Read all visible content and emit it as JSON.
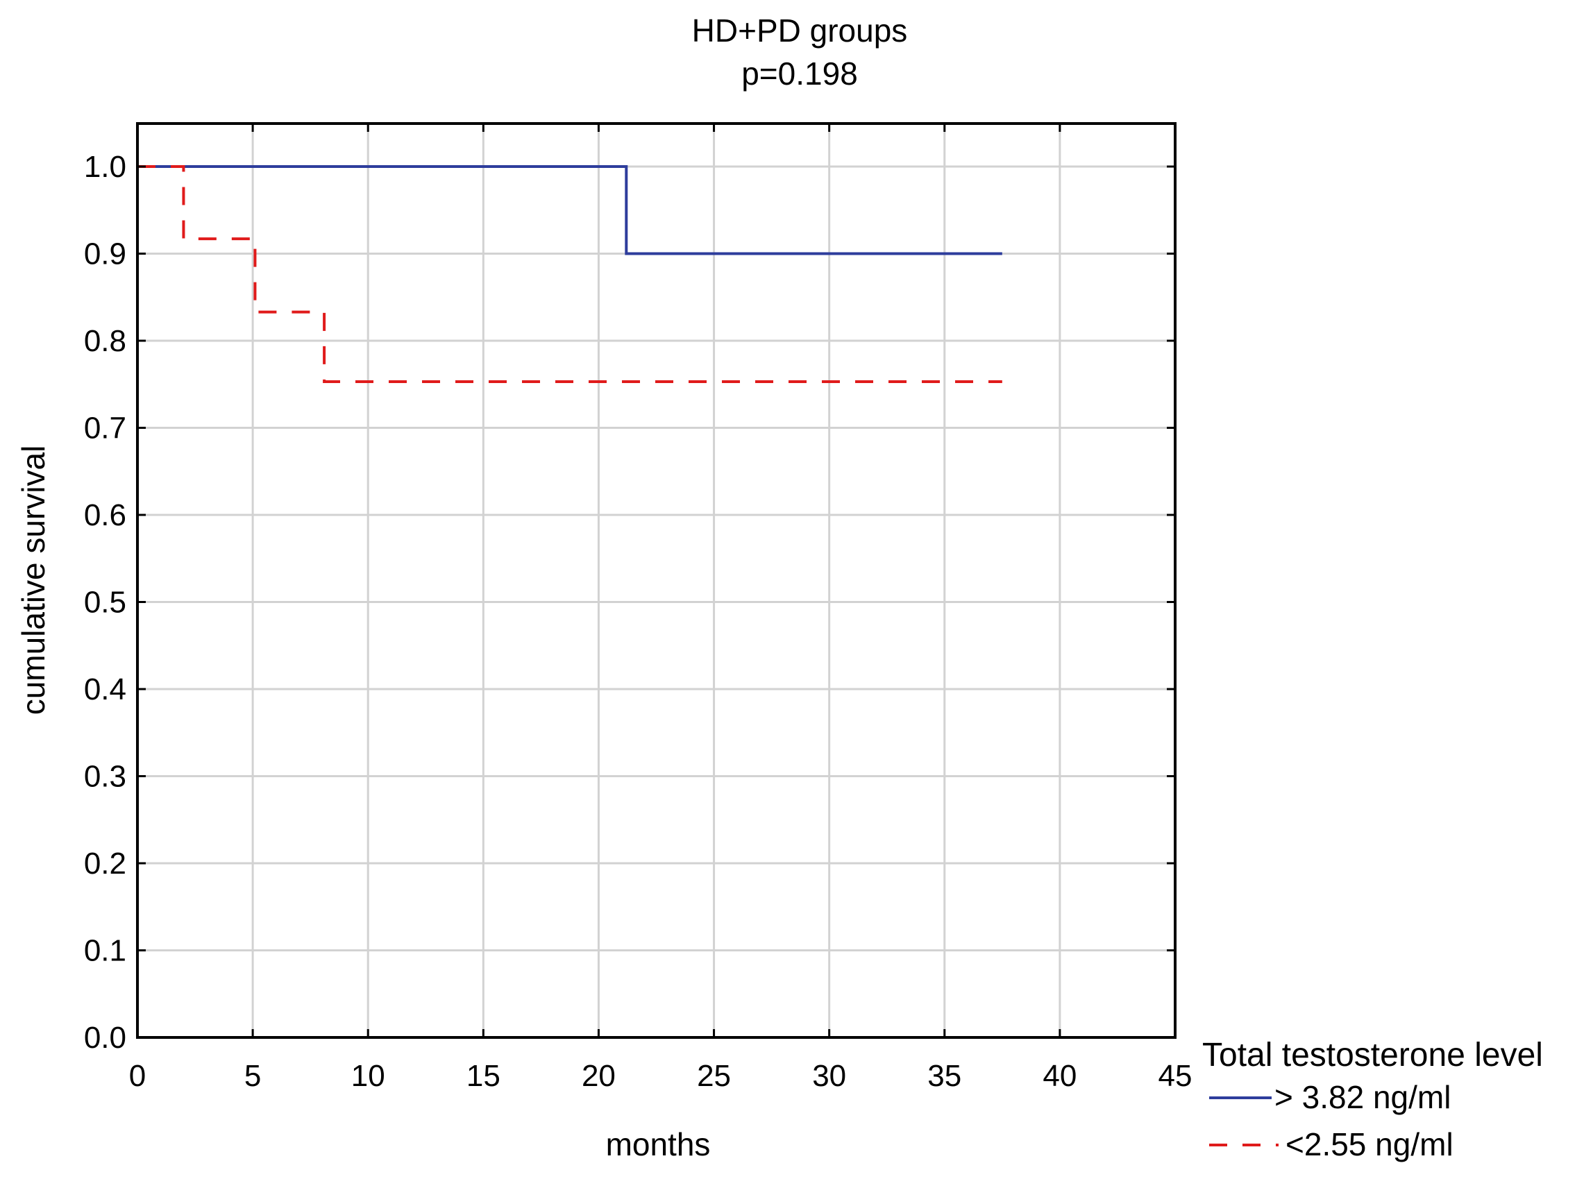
{
  "chart_data": {
    "type": "line",
    "subtype": "step",
    "title": "HD+PD groups",
    "subtitle": "p=0.198",
    "xlabel": "months",
    "ylabel": "cumulative survival",
    "xlim": [
      0,
      45
    ],
    "ylim": [
      0,
      1
    ],
    "xticks": [
      "0",
      "5",
      "10",
      "15",
      "20",
      "25",
      "30",
      "35",
      "40",
      "45"
    ],
    "yticks": [
      "0.0",
      "0.1",
      "0.2",
      "0.3",
      "0.4",
      "0.5",
      "0.6",
      "0.7",
      "0.8",
      "0.9",
      "1.0"
    ],
    "grid": true,
    "legend": {
      "title": "Total testosterone level",
      "placement": "bottom-right outside"
    },
    "series": [
      {
        "name": "> 3.82 ng/ml",
        "color": "#2e3d9c",
        "style": "solid",
        "x": [
          0,
          21.2,
          37.5
        ],
        "y": [
          1.0,
          0.9,
          0.9
        ]
      },
      {
        "name": "<2.55 ng/ml",
        "color": "#e01b1b",
        "style": "dashed",
        "x": [
          0,
          2.0,
          5.1,
          8.1,
          37.5
        ],
        "y": [
          1.0,
          0.917,
          0.833,
          0.753,
          0.753
        ]
      }
    ]
  }
}
